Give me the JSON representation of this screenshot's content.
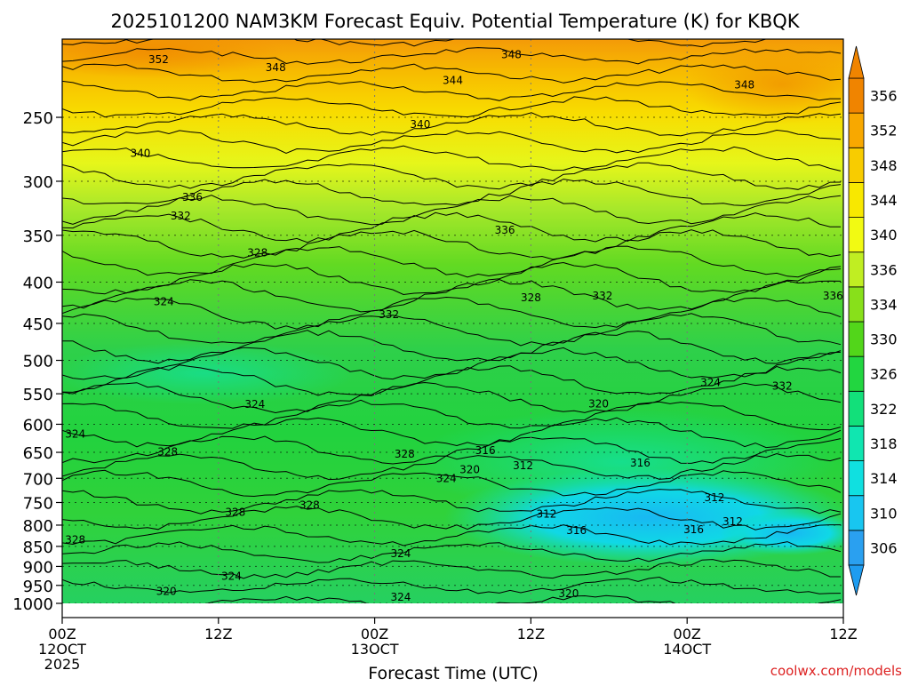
{
  "chart_data": {
    "type": "heatmap",
    "title": "2025101200 NAM3KM Forecast Equiv. Potential Temperature (K) for KBQK",
    "xlabel": "Forecast Time (UTC)",
    "ylabel": "",
    "credit": "coolwx.com/models",
    "x_ticks": [
      {
        "hour": 0,
        "lines": [
          "00Z",
          "12OCT",
          "2025"
        ]
      },
      {
        "hour": 12,
        "lines": [
          "12Z"
        ]
      },
      {
        "hour": 24,
        "lines": [
          "00Z",
          "13OCT"
        ]
      },
      {
        "hour": 36,
        "lines": [
          "12Z"
        ]
      },
      {
        "hour": 48,
        "lines": [
          "00Z",
          "14OCT"
        ]
      },
      {
        "hour": 60,
        "lines": [
          "12Z"
        ]
      }
    ],
    "xlim_hours": [
      0,
      60
    ],
    "y_ticks_hpa": [
      250,
      300,
      350,
      400,
      450,
      500,
      550,
      600,
      650,
      700,
      750,
      800,
      850,
      900,
      950,
      1000
    ],
    "ylim_hpa": [
      200,
      1000
    ],
    "y_scale": "log-pressure",
    "colorbar": {
      "labels": [
        306,
        310,
        314,
        318,
        322,
        326,
        330,
        334,
        336,
        340,
        344,
        348,
        352,
        356
      ],
      "colors": [
        "#2aa0f0",
        "#18c6f0",
        "#10e0e0",
        "#10e6b0",
        "#12e07a",
        "#22d640",
        "#52d61a",
        "#88e01a",
        "#c0ee22",
        "#f2fa12",
        "#f8e800",
        "#f8cc00",
        "#f8a800",
        "#f08400"
      ]
    },
    "contour_labels": [
      {
        "text": "352",
        "hour": 7.4,
        "hpa": 212
      },
      {
        "text": "348",
        "hour": 16.4,
        "hpa": 217
      },
      {
        "text": "348",
        "hour": 34.5,
        "hpa": 209
      },
      {
        "text": "344",
        "hour": 30.0,
        "hpa": 225
      },
      {
        "text": "348",
        "hour": 52.4,
        "hpa": 228
      },
      {
        "text": "340",
        "hour": 27.5,
        "hpa": 255
      },
      {
        "text": "340",
        "hour": 6.0,
        "hpa": 277
      },
      {
        "text": "336",
        "hour": 10.0,
        "hpa": 314
      },
      {
        "text": "332",
        "hour": 9.1,
        "hpa": 331
      },
      {
        "text": "336",
        "hour": 34.0,
        "hpa": 345
      },
      {
        "text": "328",
        "hour": 15.0,
        "hpa": 368
      },
      {
        "text": "328",
        "hour": 36.0,
        "hpa": 418
      },
      {
        "text": "332",
        "hour": 41.5,
        "hpa": 416
      },
      {
        "text": "336",
        "hour": 59.2,
        "hpa": 416
      },
      {
        "text": "324",
        "hour": 7.8,
        "hpa": 423
      },
      {
        "text": "332",
        "hour": 25.1,
        "hpa": 439
      },
      {
        "text": "324",
        "hour": 49.8,
        "hpa": 533
      },
      {
        "text": "332",
        "hour": 55.3,
        "hpa": 538
      },
      {
        "text": "324",
        "hour": 14.8,
        "hpa": 567
      },
      {
        "text": "320",
        "hour": 41.2,
        "hpa": 566
      },
      {
        "text": "324",
        "hour": 1.0,
        "hpa": 617
      },
      {
        "text": "328",
        "hour": 8.1,
        "hpa": 649
      },
      {
        "text": "328",
        "hour": 26.3,
        "hpa": 653
      },
      {
        "text": "316",
        "hour": 32.5,
        "hpa": 647
      },
      {
        "text": "316",
        "hour": 44.4,
        "hpa": 670
      },
      {
        "text": "312",
        "hour": 35.4,
        "hpa": 675
      },
      {
        "text": "320",
        "hour": 31.3,
        "hpa": 683
      },
      {
        "text": "324",
        "hour": 29.5,
        "hpa": 700
      },
      {
        "text": "312",
        "hour": 50.1,
        "hpa": 740
      },
      {
        "text": "328",
        "hour": 13.3,
        "hpa": 771
      },
      {
        "text": "328",
        "hour": 19.0,
        "hpa": 756
      },
      {
        "text": "312",
        "hour": 37.2,
        "hpa": 775
      },
      {
        "text": "312",
        "hour": 51.5,
        "hpa": 792
      },
      {
        "text": "316",
        "hour": 39.5,
        "hpa": 812
      },
      {
        "text": "316",
        "hour": 48.5,
        "hpa": 810
      },
      {
        "text": "328",
        "hour": 1.0,
        "hpa": 834
      },
      {
        "text": "324",
        "hour": 26.0,
        "hpa": 868
      },
      {
        "text": "324",
        "hour": 13.0,
        "hpa": 926
      },
      {
        "text": "320",
        "hour": 8.0,
        "hpa": 966
      },
      {
        "text": "320",
        "hour": 38.9,
        "hpa": 973
      },
      {
        "text": "324",
        "hour": 26.0,
        "hpa": 983
      }
    ]
  }
}
